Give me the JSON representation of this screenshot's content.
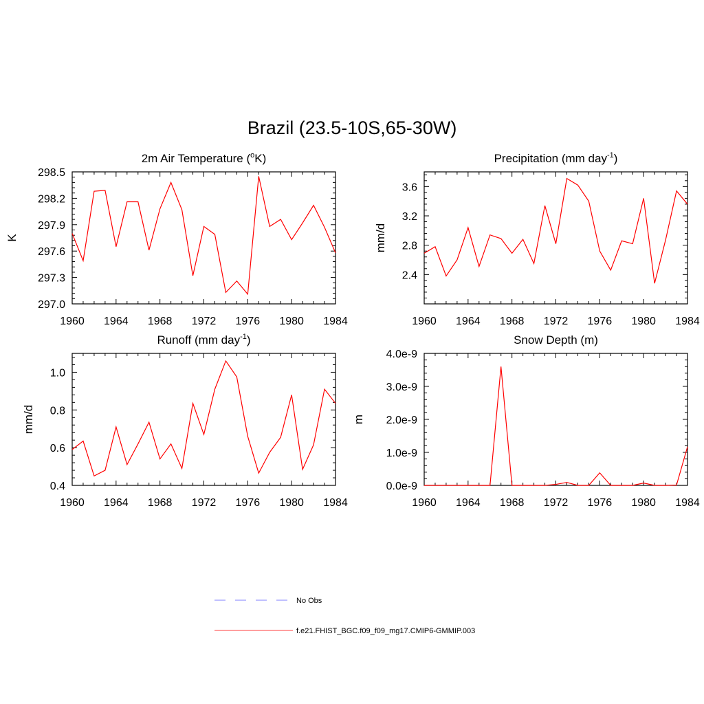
{
  "title": "Brazil (23.5-10S,65-30W)",
  "series_color": "#ff0000",
  "obs_color": "#9999ff",
  "legend": {
    "obs_label": "No Obs",
    "model_label": "f.e21.FHIST_BGC.f09_f09_mg17.CMIP6-GMMIP.003"
  },
  "chart_data": [
    {
      "type": "line",
      "title_main": "2m Air Temperature (",
      "title_sup_pre": "o",
      "title_after": "K)",
      "ylabel": "K",
      "xlim": [
        1960,
        1984
      ],
      "ylim": [
        297.0,
        298.5
      ],
      "xticks": [
        "1960",
        "1964",
        "1968",
        "1972",
        "1976",
        "1980",
        "1984"
      ],
      "yticks": [
        "297.0",
        "297.3",
        "297.6",
        "297.9",
        "298.2",
        "298.5"
      ],
      "x": [
        1960,
        1961,
        1962,
        1963,
        1964,
        1965,
        1966,
        1967,
        1968,
        1969,
        1970,
        1971,
        1972,
        1973,
        1974,
        1975,
        1976,
        1977,
        1978,
        1979,
        1980,
        1981,
        1982,
        1983,
        1984
      ],
      "series": [
        {
          "values": [
            297.8,
            297.49,
            298.28,
            298.29,
            297.65,
            298.16,
            298.16,
            297.61,
            298.08,
            298.38,
            298.07,
            297.32,
            297.88,
            297.79,
            297.13,
            297.26,
            297.11,
            298.45,
            297.88,
            297.96,
            297.73,
            297.92,
            298.12,
            297.87,
            297.58
          ]
        }
      ]
    },
    {
      "type": "line",
      "title_main": "Precipitation (mm day",
      "title_sup_post": "-1",
      "title_after": ")",
      "ylabel": "mm/d",
      "xlim": [
        1960,
        1984
      ],
      "ylim": [
        2.0,
        3.8
      ],
      "xticks": [
        "1960",
        "1964",
        "1968",
        "1972",
        "1976",
        "1980",
        "1984"
      ],
      "yticks": [
        "2.4",
        "2.8",
        "3.2",
        "3.6"
      ],
      "x": [
        1960,
        1961,
        1962,
        1963,
        1964,
        1965,
        1966,
        1967,
        1968,
        1969,
        1970,
        1971,
        1972,
        1973,
        1974,
        1975,
        1976,
        1977,
        1978,
        1979,
        1980,
        1981,
        1982,
        1983,
        1984
      ],
      "series": [
        {
          "values": [
            2.69,
            2.78,
            2.38,
            2.6,
            3.04,
            2.51,
            2.94,
            2.89,
            2.69,
            2.88,
            2.55,
            3.34,
            2.82,
            3.71,
            3.62,
            3.4,
            2.72,
            2.46,
            2.86,
            2.82,
            3.44,
            2.28,
            2.87,
            3.54,
            3.36
          ]
        }
      ]
    },
    {
      "type": "line",
      "title_main": "Runoff (mm day",
      "title_sup_post": "-1",
      "title_after": ")",
      "ylabel": "mm/d",
      "xlim": [
        1960,
        1984
      ],
      "ylim": [
        0.4,
        1.1
      ],
      "xticks": [
        "1960",
        "1964",
        "1968",
        "1972",
        "1976",
        "1980",
        "1984"
      ],
      "yticks": [
        "0.4",
        "0.6",
        "0.8",
        "1.0"
      ],
      "x": [
        1960,
        1961,
        1962,
        1963,
        1964,
        1965,
        1966,
        1967,
        1968,
        1969,
        1970,
        1971,
        1972,
        1973,
        1974,
        1975,
        1976,
        1977,
        1978,
        1979,
        1980,
        1981,
        1982,
        1983,
        1984
      ],
      "series": [
        {
          "values": [
            0.59,
            0.635,
            0.45,
            0.48,
            0.71,
            0.51,
            0.62,
            0.735,
            0.54,
            0.62,
            0.49,
            0.835,
            0.67,
            0.91,
            1.06,
            0.975,
            0.66,
            0.465,
            0.575,
            0.655,
            0.88,
            0.485,
            0.615,
            0.91,
            0.835
          ]
        }
      ]
    },
    {
      "type": "line",
      "title_main": "Snow Depth (m)",
      "ylabel": "m",
      "xlim": [
        1960,
        1984
      ],
      "ylim": [
        0,
        4e-09
      ],
      "xticks": [
        "1960",
        "1964",
        "1968",
        "1972",
        "1976",
        "1980",
        "1984"
      ],
      "yticks": [
        "0.0e-9",
        "1.0e-9",
        "2.0e-9",
        "3.0e-9",
        "4.0e-9"
      ],
      "x": [
        1960,
        1961,
        1962,
        1963,
        1964,
        1965,
        1966,
        1967,
        1968,
        1969,
        1970,
        1971,
        1972,
        1973,
        1974,
        1975,
        1976,
        1977,
        1978,
        1979,
        1980,
        1981,
        1982,
        1983,
        1984
      ],
      "series": [
        {
          "values": [
            0,
            0,
            0,
            0,
            0,
            0,
            0,
            3.6e-09,
            0,
            0,
            0,
            0,
            3e-11,
            9e-11,
            0,
            0,
            3.8e-10,
            0,
            0,
            0,
            7e-11,
            0,
            0,
            1e-11,
            1.17e-09
          ]
        }
      ]
    }
  ]
}
